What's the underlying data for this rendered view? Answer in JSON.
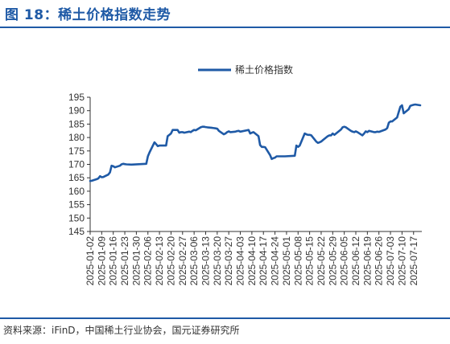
{
  "figure": {
    "title": "图 18：稀土价格指数走势",
    "source": "资料来源：iFinD，中国稀土行业协会，国元证券研究所"
  },
  "colors": {
    "series": "#1f5aa6",
    "axis": "#333333",
    "accent": "#1f5aa6"
  },
  "chart_data": {
    "type": "line",
    "title": "",
    "xlabel": "",
    "ylabel": "",
    "ylim": [
      145,
      195
    ],
    "yticks": [
      145,
      150,
      155,
      160,
      165,
      170,
      175,
      180,
      185,
      190,
      195
    ],
    "grid": false,
    "legend": "top-center",
    "xlim": [
      "2025-01-02",
      "2025-07-22"
    ],
    "xtick_labels": [
      "2025-01-02",
      "2025-01-09",
      "2025-01-16",
      "2025-01-23",
      "2025-01-30",
      "2025-02-06",
      "2025-02-13",
      "2025-02-20",
      "2025-02-27",
      "2025-03-06",
      "2025-03-13",
      "2025-03-20",
      "2025-03-27",
      "2025-04-03",
      "2025-04-10",
      "2025-04-17",
      "2025-04-24",
      "2025-05-01",
      "2025-05-08",
      "2025-05-15",
      "2025-05-22",
      "2025-05-29",
      "2025-06-05",
      "2025-06-12",
      "2025-06-19",
      "2025-06-26",
      "2025-07-03",
      "2025-07-10",
      "2025-07-17"
    ],
    "series": [
      {
        "name": "稀土价格指数",
        "x": [
          "2025-01-02",
          "2025-01-03",
          "2025-01-06",
          "2025-01-07",
          "2025-01-08",
          "2025-01-09",
          "2025-01-10",
          "2025-01-13",
          "2025-01-14",
          "2025-01-15",
          "2025-01-16",
          "2025-01-17",
          "2025-01-20",
          "2025-01-21",
          "2025-01-22",
          "2025-01-23",
          "2025-01-24",
          "2025-01-27",
          "2025-02-05",
          "2025-02-06",
          "2025-02-07",
          "2025-02-10",
          "2025-02-11",
          "2025-02-12",
          "2025-02-13",
          "2025-02-14",
          "2025-02-17",
          "2025-02-18",
          "2025-02-19",
          "2025-02-20",
          "2025-02-21",
          "2025-02-24",
          "2025-02-25",
          "2025-02-26",
          "2025-02-27",
          "2025-02-28",
          "2025-03-03",
          "2025-03-04",
          "2025-03-05",
          "2025-03-06",
          "2025-03-07",
          "2025-03-10",
          "2025-03-11",
          "2025-03-12",
          "2025-03-13",
          "2025-03-14",
          "2025-03-17",
          "2025-03-18",
          "2025-03-19",
          "2025-03-20",
          "2025-03-21",
          "2025-03-24",
          "2025-03-25",
          "2025-03-26",
          "2025-03-27",
          "2025-03-28",
          "2025-03-31",
          "2025-04-01",
          "2025-04-02",
          "2025-04-03",
          "2025-04-07",
          "2025-04-08",
          "2025-04-09",
          "2025-04-10",
          "2025-04-11",
          "2025-04-14",
          "2025-04-15",
          "2025-04-16",
          "2025-04-17",
          "2025-04-18",
          "2025-04-21",
          "2025-04-22",
          "2025-04-23",
          "2025-04-24",
          "2025-04-25",
          "2025-04-28",
          "2025-04-29",
          "2025-04-30",
          "2025-05-06",
          "2025-05-07",
          "2025-05-08",
          "2025-05-09",
          "2025-05-12",
          "2025-05-13",
          "2025-05-14",
          "2025-05-15",
          "2025-05-16",
          "2025-05-19",
          "2025-05-20",
          "2025-05-21",
          "2025-05-22",
          "2025-05-23",
          "2025-05-26",
          "2025-05-27",
          "2025-05-28",
          "2025-05-29",
          "2025-05-30",
          "2025-06-03",
          "2025-06-04",
          "2025-06-05",
          "2025-06-06",
          "2025-06-09",
          "2025-06-10",
          "2025-06-11",
          "2025-06-12",
          "2025-06-13",
          "2025-06-16",
          "2025-06-17",
          "2025-06-18",
          "2025-06-19",
          "2025-06-20",
          "2025-06-23",
          "2025-06-24",
          "2025-06-25",
          "2025-06-26",
          "2025-06-27",
          "2025-06-30",
          "2025-07-01",
          "2025-07-02",
          "2025-07-03",
          "2025-07-04",
          "2025-07-07",
          "2025-07-08",
          "2025-07-09",
          "2025-07-10",
          "2025-07-11",
          "2025-07-14",
          "2025-07-15",
          "2025-07-16",
          "2025-07-17",
          "2025-07-18",
          "2025-07-21"
        ],
        "values": [
          163.8,
          163.9,
          164.5,
          164.8,
          165.6,
          165.2,
          165.3,
          166.2,
          167.0,
          169.5,
          169.3,
          168.9,
          169.5,
          170.0,
          170.2,
          170.1,
          170.0,
          169.9,
          170.2,
          173.0,
          174.5,
          178.2,
          177.5,
          176.8,
          177.0,
          177.0,
          177.0,
          180.5,
          181.0,
          181.5,
          182.8,
          182.8,
          181.8,
          182.0,
          182.0,
          181.8,
          182.2,
          182.0,
          182.5,
          182.8,
          182.7,
          183.8,
          184.0,
          184.0,
          183.9,
          183.8,
          183.6,
          183.5,
          183.4,
          183.3,
          182.5,
          181.2,
          181.5,
          182.0,
          182.3,
          182.0,
          182.2,
          182.4,
          182.5,
          182.2,
          182.7,
          182.8,
          181.5,
          181.8,
          182.0,
          180.5,
          177.2,
          176.5,
          176.5,
          176.4,
          173.5,
          172.0,
          172.3,
          172.5,
          173.0,
          173.0,
          173.0,
          173.0,
          173.2,
          177.0,
          176.5,
          177.0,
          181.5,
          181.2,
          181.0,
          181.0,
          180.8,
          178.5,
          178.0,
          178.2,
          178.5,
          179.0,
          180.5,
          180.8,
          180.8,
          181.5,
          181.0,
          183.0,
          183.8,
          184.0,
          183.8,
          182.5,
          182.2,
          182.0,
          182.3,
          182.0,
          180.8,
          181.5,
          182.3,
          182.0,
          182.5,
          182.0,
          182.0,
          182.2,
          182.1,
          182.3,
          183.0,
          183.5,
          185.5,
          186.0,
          186.0,
          187.5,
          189.5,
          191.5,
          192.0,
          189.0,
          190.5,
          191.8,
          192.0,
          192.2,
          192.3,
          192.0
        ]
      }
    ]
  }
}
